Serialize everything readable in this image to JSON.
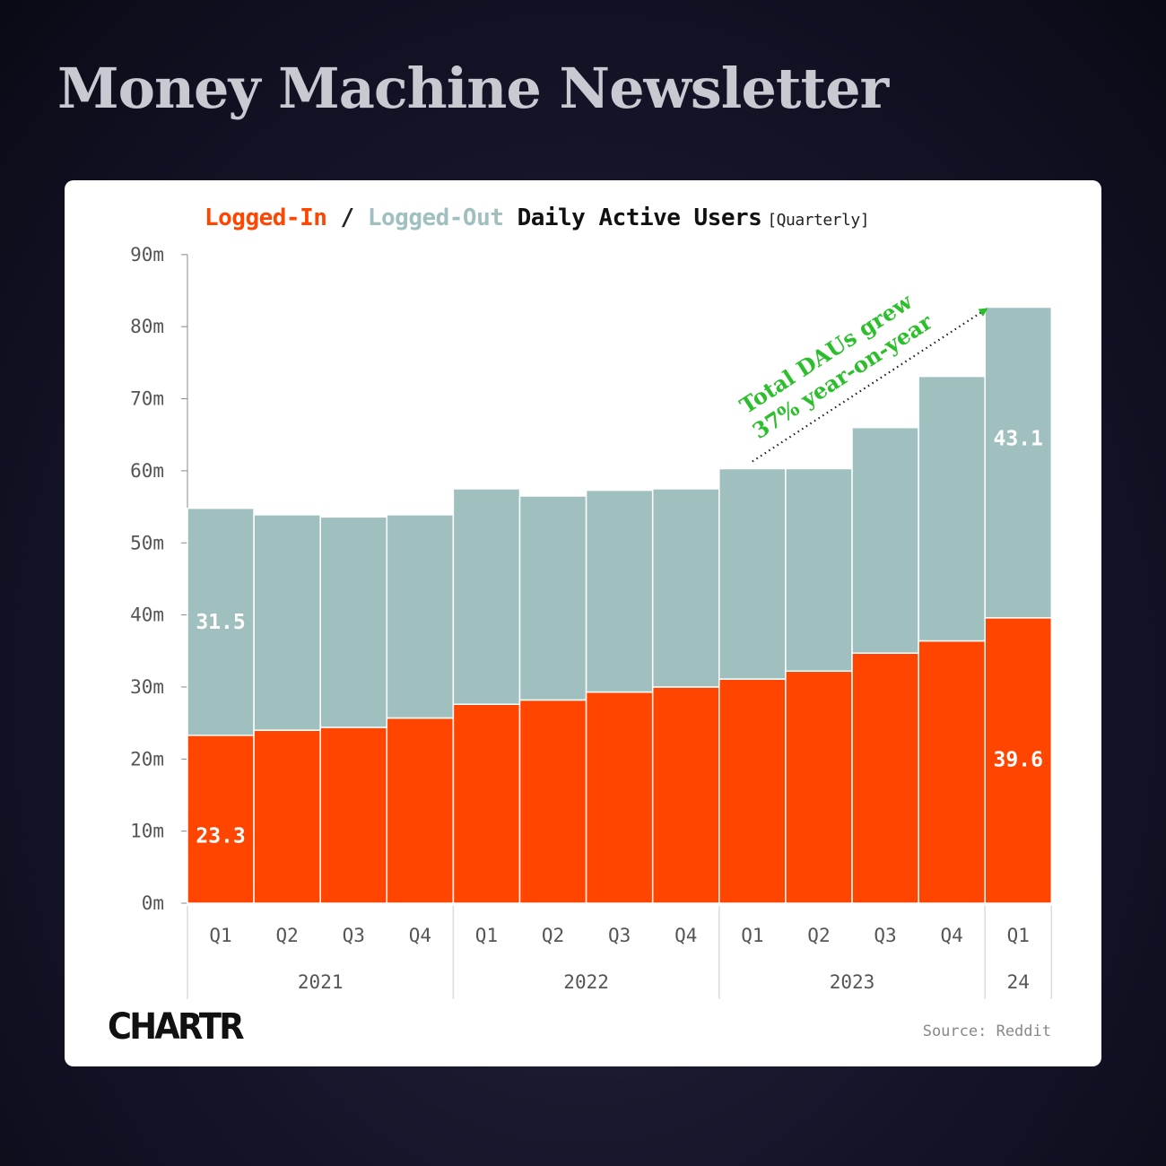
{
  "header": {
    "title": "Money Machine Newsletter"
  },
  "chart_title": {
    "logged_in": "Logged-In",
    "separator": "/",
    "logged_out": "Logged-Out",
    "rest": "Daily Active Users",
    "frequency": "[Quarterly]"
  },
  "colors": {
    "logged_in": "#ff4500",
    "logged_out": "#a0c0bf",
    "annotation": "#2bbf2b"
  },
  "chart_data": {
    "type": "bar",
    "stacked": true,
    "categories": [
      "Q1 2021",
      "Q2 2021",
      "Q3 2021",
      "Q4 2021",
      "Q1 2022",
      "Q2 2022",
      "Q3 2022",
      "Q4 2022",
      "Q1 2023",
      "Q2 2023",
      "Q3 2023",
      "Q4 2023",
      "Q1 24"
    ],
    "tick_labels": [
      "Q1",
      "Q2",
      "Q3",
      "Q4",
      "Q1",
      "Q2",
      "Q3",
      "Q4",
      "Q1",
      "Q2",
      "Q3",
      "Q4",
      "Q1"
    ],
    "year_groups": [
      {
        "label": "2021",
        "count": 4
      },
      {
        "label": "2022",
        "count": 4
      },
      {
        "label": "2023",
        "count": 4
      },
      {
        "label": "24",
        "count": 1
      }
    ],
    "series": [
      {
        "name": "Logged-In",
        "values": [
          23.3,
          24.0,
          24.4,
          25.7,
          27.6,
          28.2,
          29.3,
          30.0,
          31.1,
          32.2,
          34.7,
          36.4,
          39.6
        ]
      },
      {
        "name": "Logged-Out",
        "values": [
          31.5,
          29.9,
          29.2,
          28.2,
          29.9,
          28.3,
          28.0,
          27.5,
          29.2,
          28.1,
          31.3,
          36.7,
          43.1
        ]
      }
    ],
    "data_labels": [
      {
        "index": 0,
        "series": 0,
        "text": "23.3"
      },
      {
        "index": 0,
        "series": 1,
        "text": "31.5"
      },
      {
        "index": 12,
        "series": 0,
        "text": "39.6"
      },
      {
        "index": 12,
        "series": 1,
        "text": "43.1"
      }
    ],
    "y_ticks": [
      "0m",
      "10m",
      "20m",
      "30m",
      "40m",
      "50m",
      "60m",
      "70m",
      "80m",
      "90m"
    ],
    "ylim": [
      0,
      90
    ],
    "grid": false,
    "annotation": {
      "line1": "Total DAUs grew",
      "line2": "37% year-on-year",
      "from_index": 8,
      "to_index": 12
    }
  },
  "logo": {
    "text": "CHARTR"
  },
  "source": "Source: Reddit"
}
